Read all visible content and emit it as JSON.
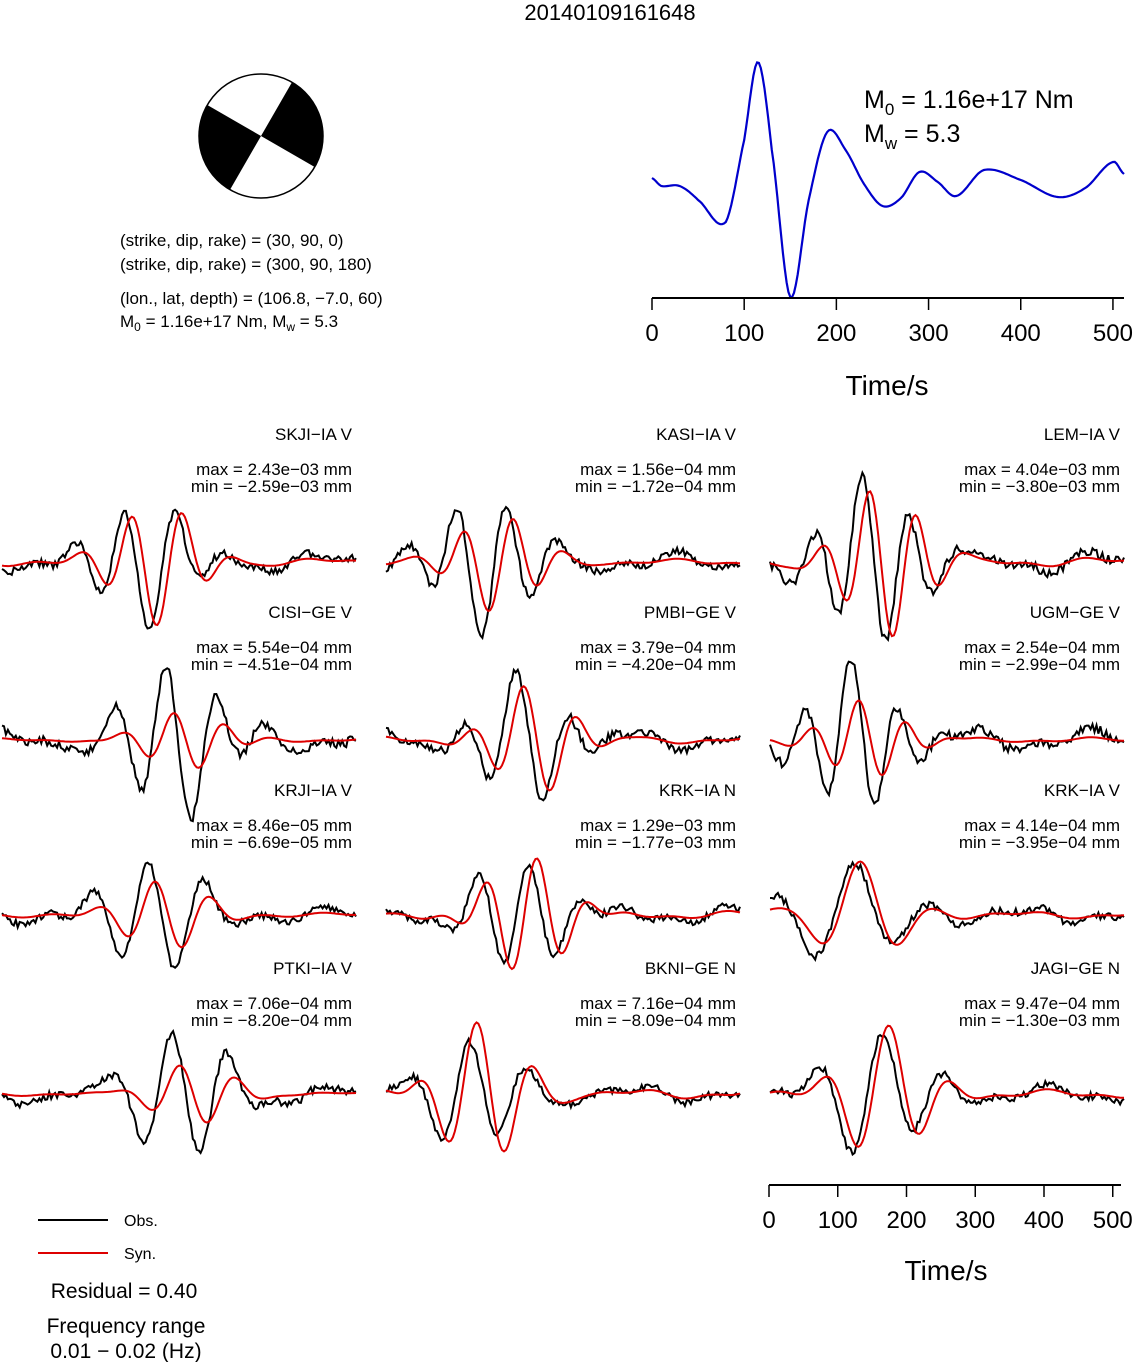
{
  "title": "20140109161648",
  "focal_mechanism": {
    "plane1": "(strike, dip, rake) = (30, 90, 0)",
    "plane2": "(strike, dip, rake) = (300, 90, 180)",
    "location": "(lon., lat, depth) = (106.8, −7.0, 60)",
    "moment_line": "M0 = 1.16e+17 Nm, Mw = 5.3"
  },
  "stf": {
    "m0_label": "M0 = 1.16e+17 Nm",
    "mw_label": "Mw = 5.3",
    "color": "#0000cc"
  },
  "time_axis": {
    "label": "Time/s",
    "ticks": [
      0,
      100,
      200,
      300,
      400,
      500
    ],
    "range": [
      0,
      512
    ]
  },
  "legend": {
    "obs": "Obs.",
    "syn": "Syn.",
    "obs_color": "#000000",
    "syn_color": "#dd0000"
  },
  "residual": "Residual = 0.40",
  "frequency_label": "Frequency range",
  "frequency_value": "0.01 − 0.02 (Hz)",
  "chart_data": {
    "type": "line",
    "title": "20140109161648",
    "xlabel": "Time/s",
    "xlim": [
      0,
      512
    ],
    "series_names": [
      "Obs.",
      "Syn."
    ],
    "stations": [
      {
        "code": "SKJI−IA V",
        "max": "max = 2.43e−03 mm",
        "min": "min = −2.59e−03 mm"
      },
      {
        "code": "KASI−IA V",
        "max": "max = 1.56e−04 mm",
        "min": "min = −1.72e−04 mm"
      },
      {
        "code": "LEM−IA V",
        "max": "max = 4.04e−03 mm",
        "min": "min = −3.80e−03 mm"
      },
      {
        "code": "CISI−GE V",
        "max": "max = 5.54e−04 mm",
        "min": "min = −4.51e−04 mm"
      },
      {
        "code": "PMBI−GE V",
        "max": "max = 3.79e−04 mm",
        "min": "min = −4.20e−04 mm"
      },
      {
        "code": "UGM−GE V",
        "max": "max = 2.54e−04 mm",
        "min": "min = −2.99e−04 mm"
      },
      {
        "code": "KRJI−IA V",
        "max": "max = 8.46e−05 mm",
        "min": "min = −6.69e−05 mm"
      },
      {
        "code": "KRK−IA N",
        "max": "max = 1.29e−03 mm",
        "min": "min = −1.77e−03 mm"
      },
      {
        "code": "KRK−IA V",
        "max": "max = 4.14e−04 mm",
        "min": "min = −3.95e−04 mm"
      },
      {
        "code": "PTKI−IA V",
        "max": "max = 7.06e−04 mm",
        "min": "min = −8.20e−04 mm"
      },
      {
        "code": "BKNI−GE N",
        "max": "max = 7.16e−04 mm",
        "min": "min = −8.09e−04 mm"
      },
      {
        "code": "JAGI−GE N",
        "max": "max = 9.47e−04 mm",
        "min": "min = −1.30e−03 mm"
      }
    ]
  }
}
